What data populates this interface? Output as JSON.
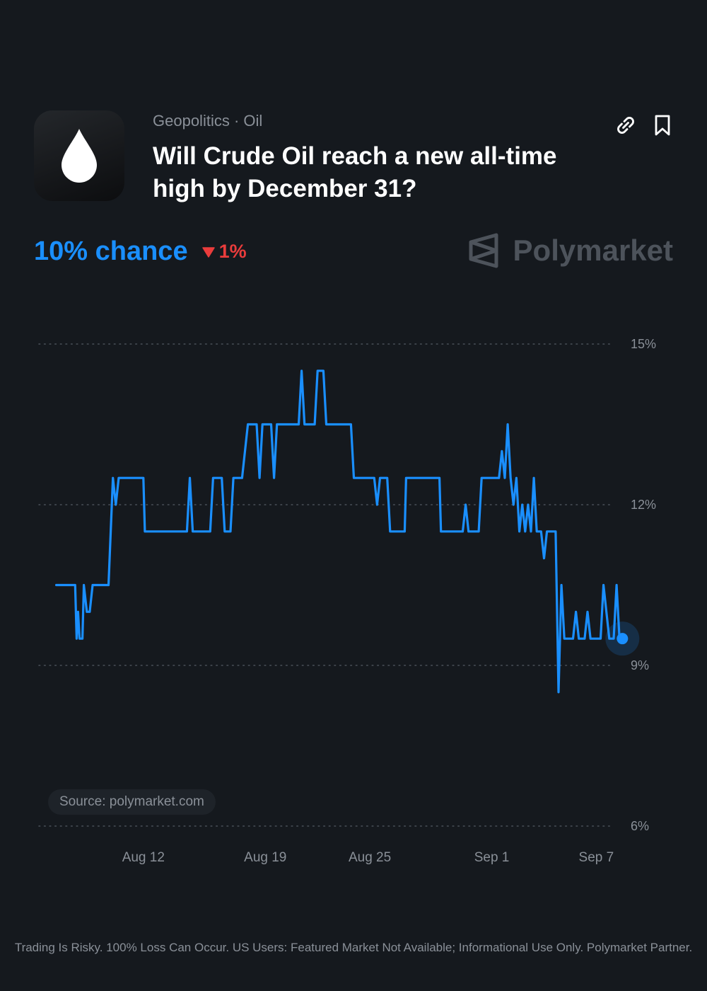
{
  "header": {
    "icon": "oil-drop-icon",
    "category": "Geopolitics · Oil",
    "title": "Will Crude Oil reach a new all-time high by December 31?",
    "actions": [
      {
        "name": "link-icon",
        "label": "Copy link"
      },
      {
        "name": "bookmark-icon",
        "label": "Bookmark"
      }
    ]
  },
  "summary": {
    "chance": "10% chance",
    "change": "1%",
    "change_direction": "down"
  },
  "brand": {
    "name": "Polymarket"
  },
  "source": "Source: polymarket.com",
  "disclaimer": "Trading Is Risky. 100% Loss Can Occur. US Users: Featured Market Not Available; Informational Use Only. Polymarket Partner.",
  "colors": {
    "background": "#15191e",
    "line": "#1a8fff",
    "negative": "#ea3c3c",
    "muted": "#8a9098",
    "grid": "#4a5058"
  },
  "chart_data": {
    "type": "line",
    "title": "",
    "xlabel": "",
    "ylabel": "",
    "ylim": [
      6,
      15
    ],
    "yticks": [
      15,
      12,
      9,
      6
    ],
    "ytick_labels": [
      "15%",
      "12%",
      "9%",
      "6%"
    ],
    "xlim": [
      "2024-08-06",
      "2024-09-08"
    ],
    "xticks": [
      "2024-08-12",
      "2024-08-19",
      "2024-08-25",
      "2024-09-01",
      "2024-09-07"
    ],
    "xtick_labels": [
      "Aug 12",
      "Aug 19",
      "Aug 25",
      "Sep 1",
      "Sep 7"
    ],
    "grid": "horizontal-dotted",
    "legend": "none",
    "series": [
      {
        "points": [
          [
            "2024-08-07T00:00",
            10.5
          ],
          [
            "2024-08-08T02:00",
            10.5
          ],
          [
            "2024-08-08T04:00",
            9.5
          ],
          [
            "2024-08-08T06:00",
            10.0
          ],
          [
            "2024-08-08T08:00",
            9.5
          ],
          [
            "2024-08-08T12:00",
            9.5
          ],
          [
            "2024-08-08T14:00",
            10.5
          ],
          [
            "2024-08-08T18:00",
            10.0
          ],
          [
            "2024-08-08T22:00",
            10.0
          ],
          [
            "2024-08-09T02:00",
            10.5
          ],
          [
            "2024-08-10T00:00",
            10.5
          ],
          [
            "2024-08-10T06:00",
            12.5
          ],
          [
            "2024-08-10T10:00",
            12.0
          ],
          [
            "2024-08-10T14:00",
            12.5
          ],
          [
            "2024-08-12T00:00",
            12.5
          ],
          [
            "2024-08-12T02:00",
            11.5
          ],
          [
            "2024-08-14T12:00",
            11.5
          ],
          [
            "2024-08-14T16:00",
            12.5
          ],
          [
            "2024-08-14T20:00",
            11.5
          ],
          [
            "2024-08-15T20:00",
            11.5
          ],
          [
            "2024-08-16T00:00",
            12.5
          ],
          [
            "2024-08-16T12:00",
            12.5
          ],
          [
            "2024-08-16T16:00",
            11.5
          ],
          [
            "2024-08-17T00:00",
            11.5
          ],
          [
            "2024-08-17T04:00",
            12.5
          ],
          [
            "2024-08-17T16:00",
            12.5
          ],
          [
            "2024-08-18T00:00",
            13.5
          ],
          [
            "2024-08-18T12:00",
            13.5
          ],
          [
            "2024-08-18T16:00",
            12.5
          ],
          [
            "2024-08-18T20:00",
            13.5
          ],
          [
            "2024-08-19T08:00",
            13.5
          ],
          [
            "2024-08-19T12:00",
            12.5
          ],
          [
            "2024-08-19T16:00",
            13.5
          ],
          [
            "2024-08-20T22:00",
            13.5
          ],
          [
            "2024-08-21T02:00",
            14.5
          ],
          [
            "2024-08-21T06:00",
            13.5
          ],
          [
            "2024-08-21T20:00",
            13.5
          ],
          [
            "2024-08-22T00:00",
            14.5
          ],
          [
            "2024-08-22T08:00",
            14.5
          ],
          [
            "2024-08-22T12:00",
            13.5
          ],
          [
            "2024-08-23T22:00",
            13.5
          ],
          [
            "2024-08-24T02:00",
            12.5
          ],
          [
            "2024-08-25T06:00",
            12.5
          ],
          [
            "2024-08-25T10:00",
            12.0
          ],
          [
            "2024-08-25T14:00",
            12.5
          ],
          [
            "2024-08-26T00:00",
            12.5
          ],
          [
            "2024-08-26T04:00",
            11.5
          ],
          [
            "2024-08-27T00:00",
            11.5
          ],
          [
            "2024-08-27T02:00",
            12.5
          ],
          [
            "2024-08-29T00:00",
            12.5
          ],
          [
            "2024-08-29T02:00",
            11.5
          ],
          [
            "2024-08-30T08:00",
            11.5
          ],
          [
            "2024-08-30T12:00",
            12.0
          ],
          [
            "2024-08-30T16:00",
            11.5
          ],
          [
            "2024-08-31T06:00",
            11.5
          ],
          [
            "2024-08-31T10:00",
            12.5
          ],
          [
            "2024-09-01T10:00",
            12.5
          ],
          [
            "2024-09-01T14:00",
            13.0
          ],
          [
            "2024-09-01T18:00",
            12.5
          ],
          [
            "2024-09-01T22:00",
            13.5
          ],
          [
            "2024-09-02T02:00",
            12.5
          ],
          [
            "2024-09-02T06:00",
            12.0
          ],
          [
            "2024-09-02T10:00",
            12.5
          ],
          [
            "2024-09-02T14:00",
            11.5
          ],
          [
            "2024-09-02T18:00",
            12.0
          ],
          [
            "2024-09-02T22:00",
            11.5
          ],
          [
            "2024-09-03T02:00",
            12.0
          ],
          [
            "2024-09-03T06:00",
            11.5
          ],
          [
            "2024-09-03T10:00",
            12.5
          ],
          [
            "2024-09-03T14:00",
            11.5
          ],
          [
            "2024-09-03T20:00",
            11.5
          ],
          [
            "2024-09-04T00:00",
            11.0
          ],
          [
            "2024-09-04T04:00",
            11.5
          ],
          [
            "2024-09-04T16:00",
            11.5
          ],
          [
            "2024-09-04T20:00",
            8.5
          ],
          [
            "2024-09-05T00:00",
            10.5
          ],
          [
            "2024-09-05T04:00",
            9.5
          ],
          [
            "2024-09-05T16:00",
            9.5
          ],
          [
            "2024-09-05T20:00",
            10.0
          ],
          [
            "2024-09-06T00:00",
            9.5
          ],
          [
            "2024-09-06T08:00",
            9.5
          ],
          [
            "2024-09-06T12:00",
            10.0
          ],
          [
            "2024-09-06T16:00",
            9.5
          ],
          [
            "2024-09-07T06:00",
            9.5
          ],
          [
            "2024-09-07T10:00",
            10.5
          ],
          [
            "2024-09-07T18:00",
            9.5
          ],
          [
            "2024-09-08T00:00",
            9.5
          ],
          [
            "2024-09-08T04:00",
            10.5
          ],
          [
            "2024-09-08T08:00",
            9.5
          ],
          [
            "2024-09-08T12:00",
            9.5
          ]
        ]
      }
    ]
  }
}
